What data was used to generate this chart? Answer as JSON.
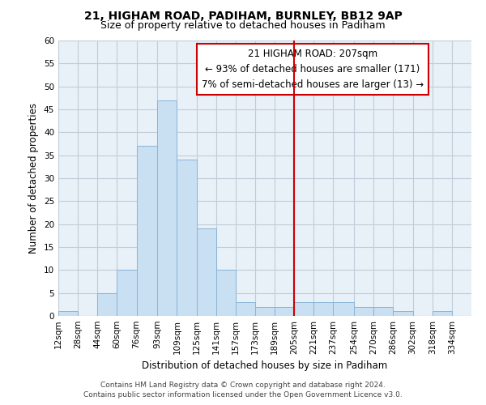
{
  "title": "21, HIGHAM ROAD, PADIHAM, BURNLEY, BB12 9AP",
  "subtitle": "Size of property relative to detached houses in Padiham",
  "xlabel": "Distribution of detached houses by size in Padiham",
  "ylabel": "Number of detached properties",
  "bin_labels": [
    "12sqm",
    "28sqm",
    "44sqm",
    "60sqm",
    "76sqm",
    "93sqm",
    "109sqm",
    "125sqm",
    "141sqm",
    "157sqm",
    "173sqm",
    "189sqm",
    "205sqm",
    "221sqm",
    "237sqm",
    "254sqm",
    "270sqm",
    "286sqm",
    "302sqm",
    "318sqm",
    "334sqm"
  ],
  "bin_edges": [
    12,
    28,
    44,
    60,
    76,
    93,
    109,
    125,
    141,
    157,
    173,
    189,
    205,
    221,
    237,
    254,
    270,
    286,
    302,
    318,
    334,
    350
  ],
  "counts": [
    1,
    0,
    5,
    10,
    37,
    47,
    34,
    19,
    10,
    3,
    2,
    2,
    3,
    3,
    3,
    2,
    2,
    1,
    0,
    1,
    0
  ],
  "bar_color": "#c9dff2",
  "bar_edge_color": "#8ab4d8",
  "vline_x": 205,
  "vline_color": "#cc0000",
  "ylim": [
    0,
    60
  ],
  "yticks": [
    0,
    5,
    10,
    15,
    20,
    25,
    30,
    35,
    40,
    45,
    50,
    55,
    60
  ],
  "annotation_title": "21 HIGHAM ROAD: 207sqm",
  "annotation_line1": "← 93% of detached houses are smaller (171)",
  "annotation_line2": "7% of semi-detached houses are larger (13) →",
  "annotation_box_color": "#ffffff",
  "annotation_box_edge": "#cc0000",
  "footer_line1": "Contains HM Land Registry data © Crown copyright and database right 2024.",
  "footer_line2": "Contains public sector information licensed under the Open Government Licence v3.0.",
  "bg_color": "#ffffff",
  "plot_bg_color": "#e8f0f8",
  "grid_color": "#c0ccd8",
  "title_fontsize": 10,
  "subtitle_fontsize": 9,
  "axis_label_fontsize": 8.5,
  "tick_fontsize": 7.5,
  "annotation_fontsize": 8.5,
  "footer_fontsize": 6.5
}
